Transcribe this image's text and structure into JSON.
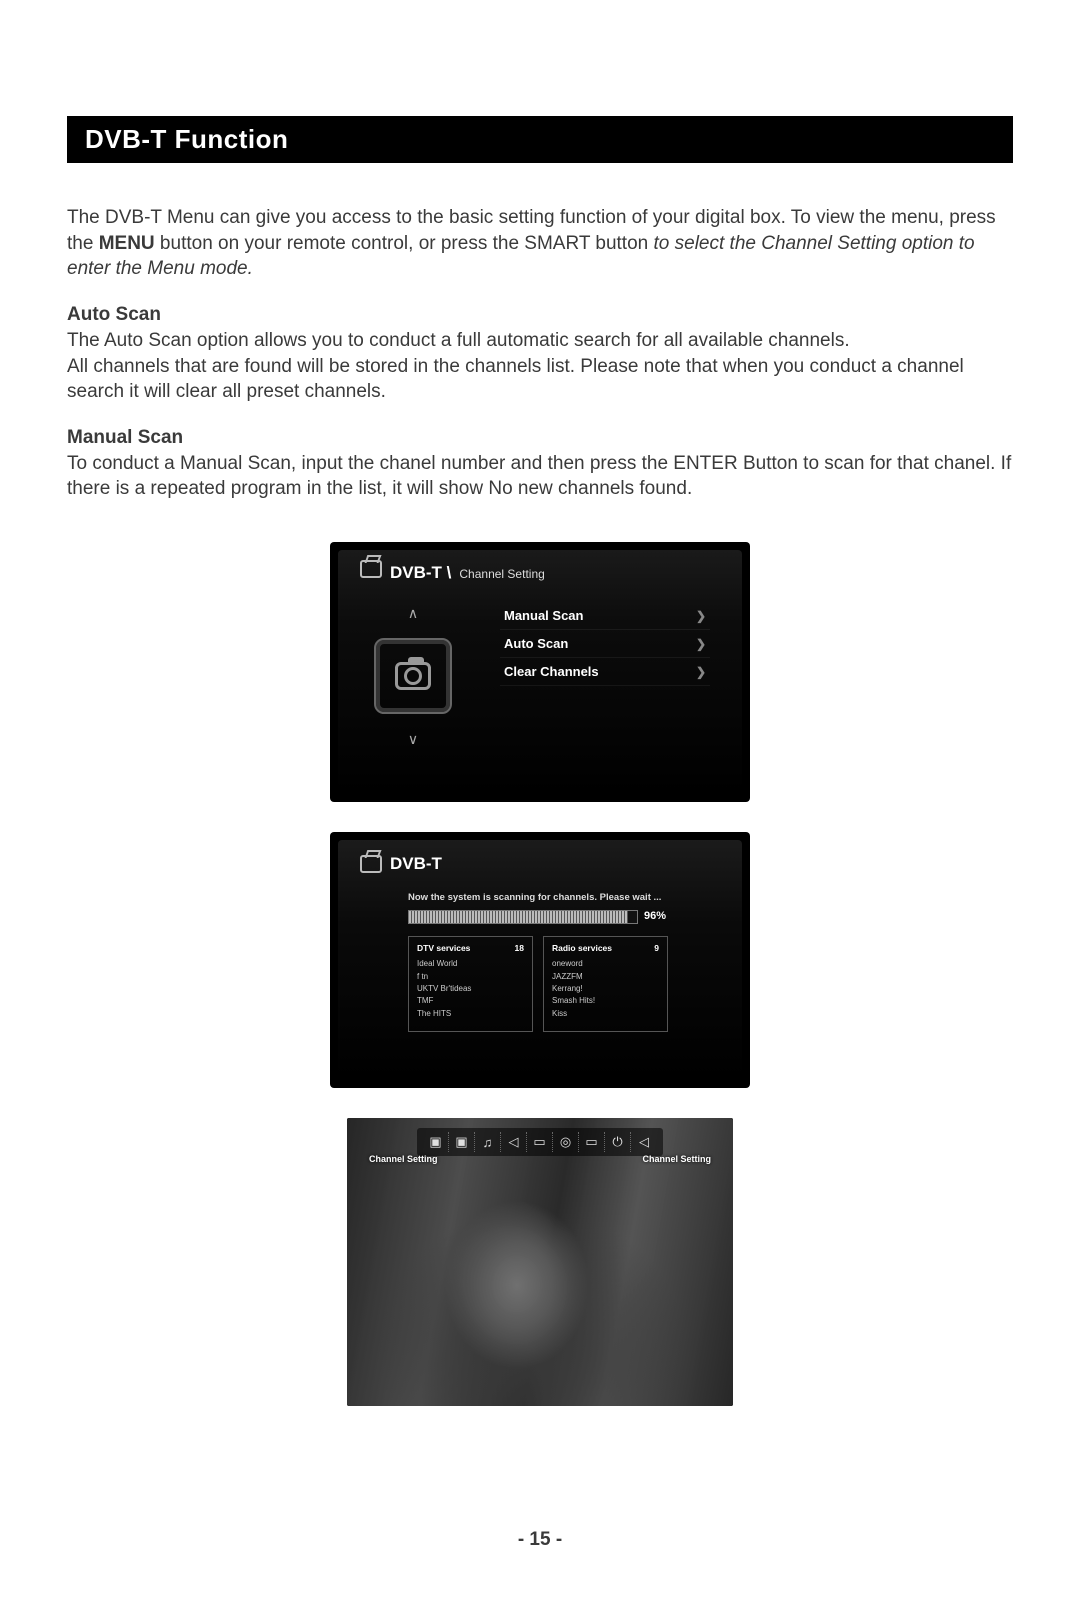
{
  "title": "DVB-T Function",
  "intro": {
    "p1_a": "The DVB-T Menu can give you access to the basic setting function of  your  digital box. To view the menu, press the ",
    "p1_bold": "MENU",
    "p1_b": " button on your remote control,  or press the SMART button ",
    "p1_italic": "to select the Channel Setting option to enter the Menu mode."
  },
  "auto": {
    "heading": "Auto Scan",
    "text": "The Auto Scan option allows you to conduct a full automatic search for all available channels.\nAll channels that are found will be stored in the channels list. Please note that when you conduct a channel search it will clear all preset channels."
  },
  "manual": {
    "heading": "Manual Scan",
    "text": "To conduct a Manual Scan, input the chanel number and then press the ENTER Button to scan for that chanel. If there is a repeated program in the list, it will show No new channels found."
  },
  "fig1": {
    "title_main": "DVB-T \\",
    "title_sub": "Channel Setting",
    "items": [
      {
        "label": "Manual Scan"
      },
      {
        "label": "Auto Scan"
      },
      {
        "label": "Clear Channels"
      }
    ]
  },
  "fig2": {
    "title": "DVB-T",
    "message": "Now the system is scanning for channels. Please wait ...",
    "percent": "96%",
    "dtv": {
      "heading": "DTV services",
      "count": "18",
      "items": [
        "Ideal World",
        "f tn",
        "UKTV Br'tideas",
        "TMF",
        "The HITS"
      ]
    },
    "radio": {
      "heading": "Radio services",
      "count": "9",
      "items": [
        "oneword",
        "JAZZFM",
        "Kerrang!",
        "Smash Hits!",
        "Kiss"
      ]
    }
  },
  "fig3": {
    "label_left": "Channel Setting",
    "label_right": "Channel Setting"
  },
  "page_number": "- 15 -"
}
